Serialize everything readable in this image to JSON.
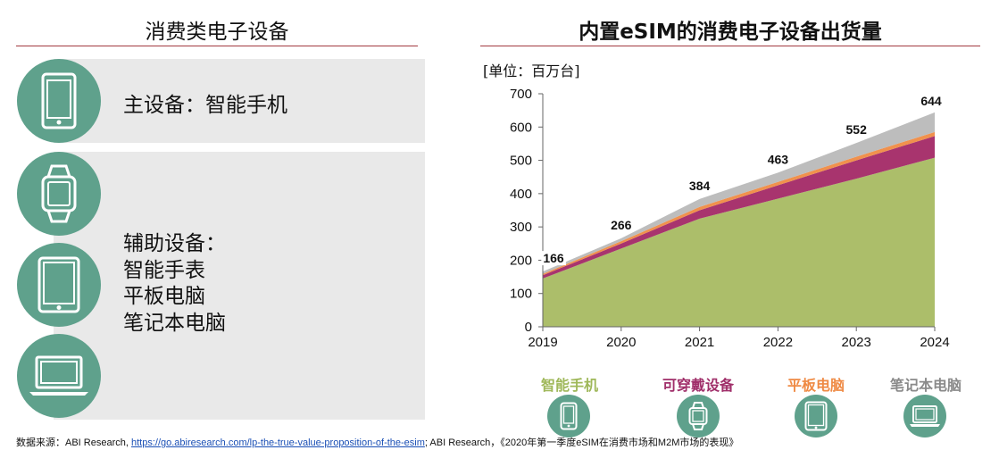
{
  "left_panel": {
    "title": "消费类电子设备",
    "primary": "主设备：智能手机",
    "secondary_title": "辅助设备：",
    "secondary_items": [
      "智能手表",
      "平板电脑",
      "笔记本电脑"
    ],
    "icons": [
      "smartphone-icon",
      "smartwatch-icon",
      "tablet-icon",
      "laptop-icon"
    ]
  },
  "right_panel": {
    "title": "内置eSIM的消费电子设备出货量",
    "unit": "[单位：百万台]"
  },
  "chart_data": {
    "type": "area",
    "stacked": true,
    "title": "内置eSIM的消费电子设备出货量",
    "unit_label": "[单位：百万台]",
    "x": [
      "2019",
      "2020",
      "2021",
      "2022",
      "2023",
      "2024"
    ],
    "ylim": [
      0,
      700
    ],
    "yticks": [
      0,
      100,
      200,
      300,
      400,
      500,
      600,
      700
    ],
    "grid": false,
    "legend_position": "bottom",
    "series": [
      {
        "name": "智能手机",
        "color": "#acbe6a",
        "values": [
          145,
          235,
          325,
          385,
          445,
          508
        ]
      },
      {
        "name": "可穿戴设备",
        "color": "#a8346e",
        "values": [
          10,
          15,
          25,
          40,
          55,
          65
        ]
      },
      {
        "name": "平板电脑",
        "color": "#f0914d",
        "values": [
          4,
          7,
          10,
          10,
          11,
          12
        ]
      },
      {
        "name": "笔记本电脑",
        "color": "#bdbdbd",
        "values": [
          7,
          9,
          24,
          28,
          41,
          59
        ]
      }
    ],
    "totals": [
      166,
      266,
      384,
      463,
      552,
      644
    ]
  },
  "legend": [
    {
      "label": "智能手机",
      "color": "#9fb85a",
      "icon": "smartphone-icon"
    },
    {
      "label": "可穿戴设备",
      "color": "#a02f6a",
      "icon": "smartwatch-icon"
    },
    {
      "label": "平板电脑",
      "color": "#ef8a44",
      "icon": "tablet-icon"
    },
    {
      "label": "笔记本电脑",
      "color": "#8a8a8a",
      "icon": "laptop-icon"
    }
  ],
  "footnote": {
    "prefix": "数据来源：ABI Research, ",
    "link": "https://go.abiresearch.com/lp-the-true-value-proposition-of-the-esim",
    "suffix": "; ABI Research，《2020年第一季度eSIM在消费市场和M2M市场的表现》"
  }
}
